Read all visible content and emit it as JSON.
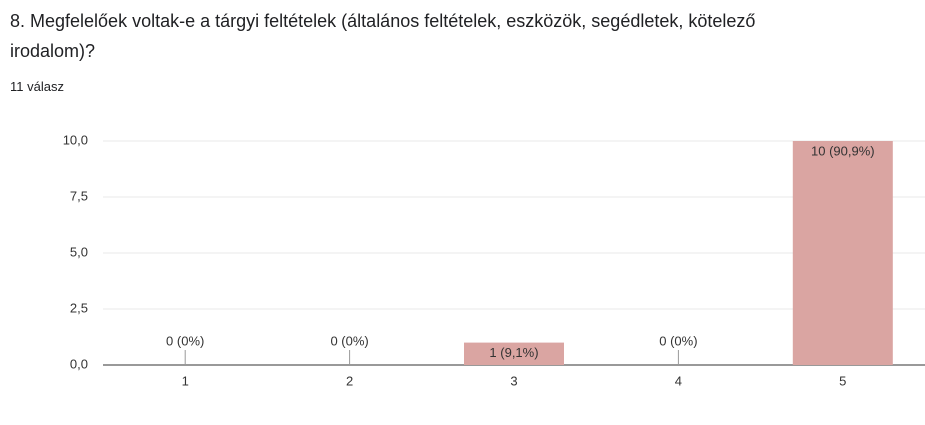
{
  "chart_data": {
    "type": "bar",
    "title": "8. Megfelelőek voltak-e a tárgyi feltételek (általános feltételek, eszközök, segédletek, kötelező irodalom)?",
    "subtitle": "11 válasz",
    "categories": [
      "1",
      "2",
      "3",
      "4",
      "5"
    ],
    "values": [
      0,
      0,
      1,
      0,
      10
    ],
    "value_labels": [
      "0 (0%)",
      "0 (0%)",
      "1 (9,1%)",
      "0 (0%)",
      "10 (90,9%)"
    ],
    "color": "#daa5a2",
    "ylim": [
      0,
      10
    ],
    "yticks": [
      {
        "value": 0,
        "label": "0,0"
      },
      {
        "value": 2.5,
        "label": "2,5"
      },
      {
        "value": 5,
        "label": "5,0"
      },
      {
        "value": 7.5,
        "label": "7,5"
      },
      {
        "value": 10,
        "label": "10,0"
      }
    ],
    "grid": true
  }
}
